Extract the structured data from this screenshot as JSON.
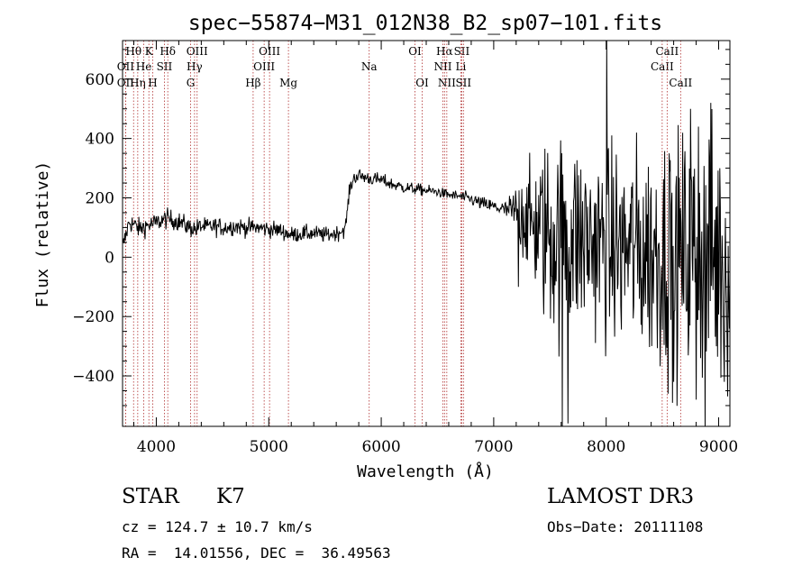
{
  "chart_data": {
    "type": "line",
    "title": "spec−55874−M31_012N38_B2_sp07−101.fits",
    "xlabel": "Wavelength (Å)",
    "ylabel": "Flux (relative)",
    "xlim": [
      3700,
      9100
    ],
    "ylim": [
      -570,
      730
    ],
    "xticks": [
      {
        "value": 4000,
        "label": "4000"
      },
      {
        "value": 5000,
        "label": "5000"
      },
      {
        "value": 6000,
        "label": "6000"
      },
      {
        "value": 7000,
        "label": "7000"
      },
      {
        "value": 8000,
        "label": "8000"
      },
      {
        "value": 9000,
        "label": "9000"
      }
    ],
    "yticks": [
      {
        "value": -400,
        "label": "−400"
      },
      {
        "value": -200,
        "label": "−200"
      },
      {
        "value": 0,
        "label": "0"
      },
      {
        "value": 200,
        "label": "200"
      },
      {
        "value": 400,
        "label": "400"
      },
      {
        "value": 600,
        "label": "600"
      }
    ],
    "line_color": "#000000",
    "marker_color": "#b03030",
    "spectrum_anchors": [
      [
        3700,
        30
      ],
      [
        3720,
        60
      ],
      [
        3760,
        120
      ],
      [
        3800,
        110
      ],
      [
        3850,
        95
      ],
      [
        3900,
        105
      ],
      [
        3950,
        110
      ],
      [
        4000,
        115
      ],
      [
        4050,
        125
      ],
      [
        4100,
        130
      ],
      [
        4150,
        125
      ],
      [
        4200,
        120
      ],
      [
        4250,
        110
      ],
      [
        4300,
        100
      ],
      [
        4350,
        95
      ],
      [
        4400,
        105
      ],
      [
        4450,
        100
      ],
      [
        4500,
        105
      ],
      [
        4600,
        100
      ],
      [
        4700,
        105
      ],
      [
        4800,
        100
      ],
      [
        4900,
        100
      ],
      [
        5000,
        95
      ],
      [
        5100,
        90
      ],
      [
        5200,
        75
      ],
      [
        5300,
        80
      ],
      [
        5400,
        80
      ],
      [
        5500,
        75
      ],
      [
        5600,
        80
      ],
      [
        5680,
        95
      ],
      [
        5720,
        230
      ],
      [
        5760,
        270
      ],
      [
        5800,
        275
      ],
      [
        5900,
        265
      ],
      [
        6000,
        260
      ],
      [
        6100,
        245
      ],
      [
        6200,
        235
      ],
      [
        6300,
        230
      ],
      [
        6400,
        225
      ],
      [
        6500,
        220
      ],
      [
        6600,
        210
      ],
      [
        6700,
        205
      ],
      [
        6800,
        195
      ],
      [
        6900,
        180
      ],
      [
        7000,
        170
      ],
      [
        7100,
        160
      ],
      [
        7200,
        150
      ],
      [
        7300,
        125
      ],
      [
        7400,
        100
      ],
      [
        7500,
        80
      ],
      [
        7600,
        60
      ],
      [
        7700,
        70
      ],
      [
        7800,
        60
      ],
      [
        7900,
        50
      ],
      [
        8000,
        40
      ],
      [
        8100,
        30
      ],
      [
        8200,
        30
      ],
      [
        8300,
        20
      ],
      [
        8400,
        15
      ],
      [
        8500,
        15
      ],
      [
        8600,
        10
      ],
      [
        8700,
        10
      ],
      [
        8800,
        5
      ],
      [
        8900,
        0
      ],
      [
        9000,
        -10
      ]
    ],
    "spectrum_noise": [
      [
        3700,
        25
      ],
      [
        5700,
        18
      ],
      [
        6600,
        12
      ],
      [
        7100,
        20
      ],
      [
        7300,
        120
      ],
      [
        7500,
        250
      ],
      [
        8000,
        230
      ],
      [
        8500,
        280
      ],
      [
        9000,
        330
      ]
    ],
    "spectrum_spikes": [
      [
        7610,
        -570
      ],
      [
        7640,
        190
      ],
      [
        7660,
        -560
      ],
      [
        8005,
        730
      ],
      [
        8030,
        -200
      ],
      [
        8560,
        350
      ],
      [
        8600,
        -420
      ],
      [
        8750,
        500
      ],
      [
        8800,
        -480
      ],
      [
        8820,
        440
      ],
      [
        8880,
        -570
      ],
      [
        8930,
        520
      ],
      [
        8980,
        -300
      ],
      [
        9010,
        300
      ],
      [
        9050,
        -420
      ],
      [
        7220,
        -100
      ],
      [
        7250,
        230
      ]
    ],
    "line_markers": [
      {
        "label": "Hθ",
        "wavelength": 3798,
        "row": 0
      },
      {
        "label": "OII",
        "wavelength": 3727,
        "row": 1
      },
      {
        "label": "OII",
        "wavelength": 3727,
        "row": 2
      },
      {
        "label": "Hη",
        "wavelength": 3835,
        "row": 2
      },
      {
        "label": "He",
        "wavelength": 3889,
        "row": 1
      },
      {
        "label": "K",
        "wavelength": 3934,
        "row": 0
      },
      {
        "label": "H",
        "wavelength": 3968,
        "row": 2
      },
      {
        "label": "SII",
        "wavelength": 4072,
        "row": 1
      },
      {
        "label": "Hδ",
        "wavelength": 4102,
        "row": 0
      },
      {
        "label": "Hγ",
        "wavelength": 4340,
        "row": 1
      },
      {
        "label": "OIII",
        "wavelength": 4363,
        "row": 0
      },
      {
        "label": "G",
        "wavelength": 4305,
        "row": 2
      },
      {
        "label": "Hβ",
        "wavelength": 4861,
        "row": 2
      },
      {
        "label": "OIII",
        "wavelength": 4959,
        "row": 1
      },
      {
        "label": "OIII",
        "wavelength": 5007,
        "row": 0
      },
      {
        "label": "Mg",
        "wavelength": 5175,
        "row": 2
      },
      {
        "label": "Na",
        "wavelength": 5893,
        "row": 1
      },
      {
        "label": "OI",
        "wavelength": 6300,
        "row": 0
      },
      {
        "label": "OI",
        "wavelength": 6364,
        "row": 2
      },
      {
        "label": "NII",
        "wavelength": 6548,
        "row": 1
      },
      {
        "label": "Hα",
        "wavelength": 6563,
        "row": 0
      },
      {
        "label": "NII",
        "wavelength": 6583,
        "row": 2
      },
      {
        "label": "Li",
        "wavelength": 6708,
        "row": 1
      },
      {
        "label": "SII",
        "wavelength": 6716,
        "row": 0
      },
      {
        "label": "SII",
        "wavelength": 6731,
        "row": 2
      },
      {
        "label": "CaII",
        "wavelength": 8498,
        "row": 1
      },
      {
        "label": "CaII",
        "wavelength": 8542,
        "row": 0
      },
      {
        "label": "CaII",
        "wavelength": 8662,
        "row": 2
      }
    ]
  },
  "info": {
    "object_class": "STAR",
    "subclass": "K7",
    "cz": "cz = 124.7 ± 10.7 km/s",
    "coords": "RA =  14.01556, DEC =  36.49563",
    "survey": "LAMOST DR3",
    "obs_date": "Obs−Date: 20111108"
  }
}
